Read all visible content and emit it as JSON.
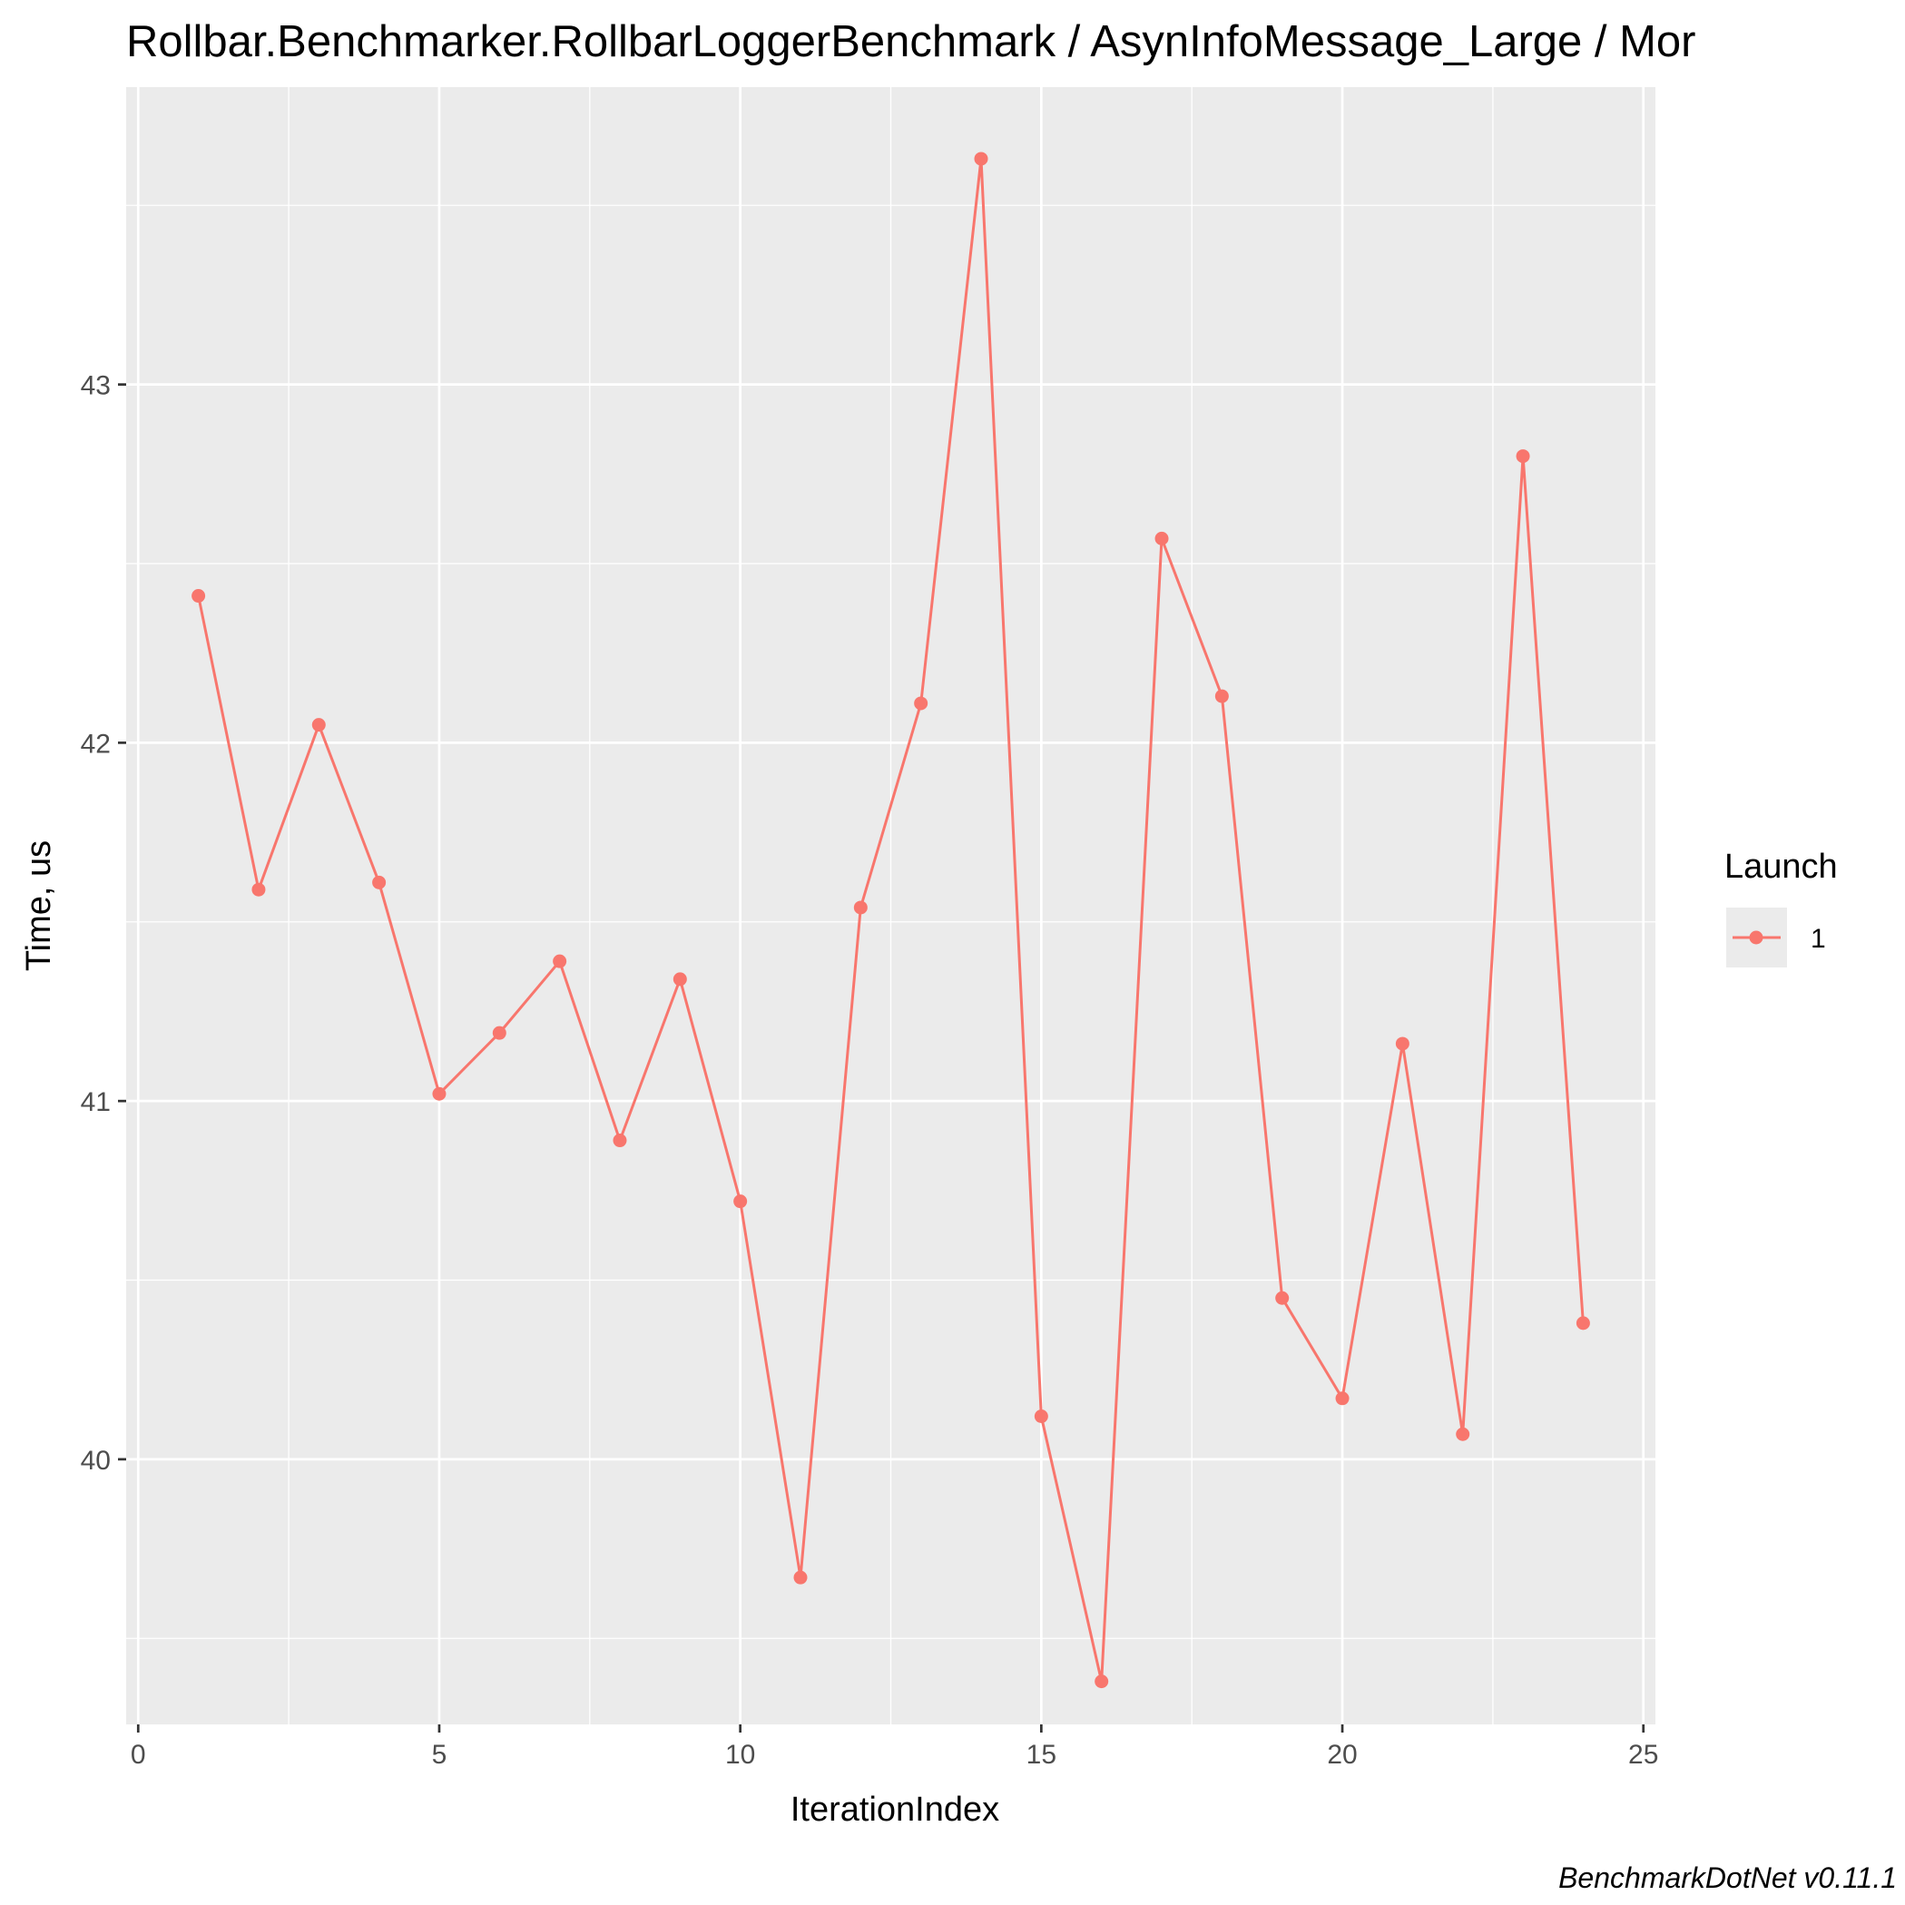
{
  "chart_data": {
    "type": "line",
    "title": "Rollbar.Benchmarker.RollbarLoggerBenchmark / AsynInfoMessage_Large / Mor",
    "xlabel": "IterationIndex",
    "ylabel": "Time, us",
    "caption": "BenchmarkDotNet v0.11.1",
    "xlim": [
      -0.2,
      25.2
    ],
    "ylim": [
      39.26,
      43.83
    ],
    "x_ticks": [
      0,
      5,
      10,
      15,
      20,
      25
    ],
    "x_tick_labels": [
      "0",
      "5",
      "10",
      "15",
      "20",
      "25"
    ],
    "y_ticks": [
      40,
      41,
      42,
      43
    ],
    "y_tick_labels": [
      "40",
      "41",
      "42",
      "43"
    ],
    "grid": true,
    "legend": {
      "title": "Launch",
      "position": "right",
      "entries": [
        "1"
      ]
    },
    "colors": {
      "series": "#F8766D",
      "panel_background": "#EBEBEB",
      "grid": "#FFFFFF"
    },
    "series": [
      {
        "name": "1",
        "x": [
          1,
          2,
          3,
          4,
          5,
          6,
          7,
          8,
          9,
          10,
          11,
          12,
          13,
          14,
          15,
          16,
          17,
          18,
          19,
          20,
          21,
          22,
          23,
          24
        ],
        "values": [
          42.41,
          41.59,
          42.05,
          41.61,
          41.02,
          41.19,
          41.39,
          40.89,
          41.34,
          40.72,
          39.67,
          41.54,
          42.11,
          43.63,
          40.12,
          39.38,
          42.57,
          42.13,
          40.45,
          40.17,
          41.16,
          40.07,
          42.8,
          40.38
        ]
      }
    ]
  }
}
